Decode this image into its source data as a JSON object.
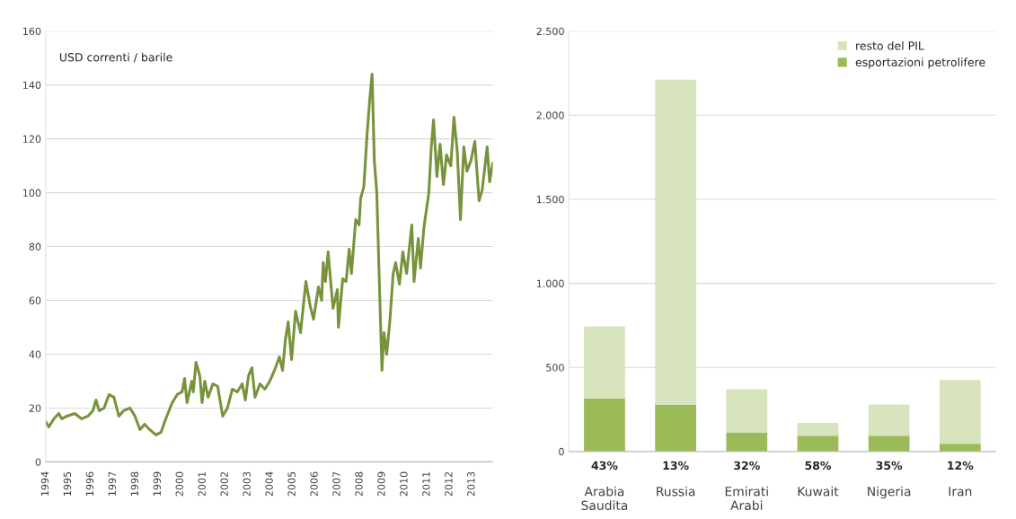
{
  "chart_data": [
    {
      "type": "line",
      "ylabel": "USD correnti / barile",
      "series": [
        {
          "color": "#77933c",
          "x": [
            1994.0,
            1994.14,
            1994.36,
            1994.58,
            1994.72,
            1994.94,
            1995.3,
            1995.6,
            1995.88,
            1996.1,
            1996.24,
            1996.39,
            1996.6,
            1996.82,
            1997.04,
            1997.26,
            1997.47,
            1997.76,
            1997.98,
            1998.2,
            1998.41,
            1998.63,
            1998.92,
            1999.14,
            1999.35,
            1999.64,
            1999.86,
            2000.08,
            2000.19,
            2000.3,
            2000.51,
            2000.58,
            2000.7,
            2000.87,
            2000.97,
            2001.09,
            2001.24,
            2001.45,
            2001.67,
            2001.89,
            2002.1,
            2002.32,
            2002.54,
            2002.76,
            2002.9,
            2003.04,
            2003.19,
            2003.33,
            2003.55,
            2003.77,
            2003.99,
            2004.2,
            2004.42,
            2004.56,
            2004.68,
            2004.81,
            2004.96,
            2005.14,
            2005.36,
            2005.6,
            2005.79,
            2005.94,
            2006.16,
            2006.3,
            2006.37,
            2006.47,
            2006.59,
            2006.81,
            2007.0,
            2007.05,
            2007.24,
            2007.39,
            2007.53,
            2007.63,
            2007.82,
            2007.97,
            2008.04,
            2008.18,
            2008.33,
            2008.45,
            2008.55,
            2008.65,
            2008.76,
            2008.88,
            2008.99,
            2009.08,
            2009.2,
            2009.34,
            2009.49,
            2009.6,
            2009.77,
            2009.92,
            2010.09,
            2010.32,
            2010.42,
            2010.61,
            2010.71,
            2010.86,
            2011.08,
            2011.19,
            2011.29,
            2011.44,
            2011.58,
            2011.73,
            2011.87,
            2012.06,
            2012.2,
            2012.35,
            2012.49,
            2012.64,
            2012.78,
            2012.96,
            2013.13,
            2013.32,
            2013.46,
            2013.68,
            2013.79,
            2013.93
          ],
          "values": [
            15,
            13,
            16,
            18,
            16,
            17,
            18,
            16,
            17,
            19,
            23,
            19,
            20,
            25,
            24,
            17,
            19,
            20,
            17,
            12,
            14,
            12,
            10,
            11,
            16,
            22,
            25,
            26,
            31,
            22,
            30,
            26,
            37,
            32,
            22,
            30,
            24,
            29,
            28,
            17,
            20,
            27,
            26,
            29,
            23,
            32,
            35,
            24,
            29,
            27,
            30,
            34,
            39,
            34,
            45,
            52,
            38,
            56,
            48,
            67,
            58,
            53,
            65,
            60,
            74,
            67,
            78,
            57,
            64,
            50,
            68,
            67,
            79,
            70,
            90,
            88,
            98,
            102,
            122,
            135,
            144,
            112,
            100,
            65,
            34,
            48,
            40,
            52,
            70,
            74,
            66,
            78,
            70,
            88,
            67,
            83,
            72,
            87,
            100,
            117,
            127,
            106,
            118,
            103,
            114,
            110,
            128,
            115,
            90,
            117,
            108,
            112,
            119,
            97,
            101,
            117,
            104,
            111
          ]
        }
      ],
      "xlim": [
        1994,
        2013.93
      ],
      "xticks": [
        1994,
        1995,
        1996,
        1997,
        1998,
        1999,
        2000,
        2001,
        2002,
        2003,
        2004,
        2005,
        2006,
        2007,
        2008,
        2009,
        2010,
        2011,
        2012,
        2013
      ],
      "ylim": [
        0,
        160
      ],
      "yticks": [
        0,
        20,
        40,
        60,
        80,
        100,
        120,
        140,
        160
      ],
      "grid": "y",
      "legend": false,
      "line_style": "solid",
      "marker": "none"
    },
    {
      "type": "bar",
      "stacked": true,
      "categories": [
        "Arabia\nSaudita",
        "Russia",
        "Emirati\nArabi",
        "Kuwait",
        "Nigeria",
        "Iran"
      ],
      "series": [
        {
          "name": "esportazioni petrolifere",
          "color": "#9bbb59",
          "values": [
            318,
            280,
            115,
            96,
            96,
            48
          ]
        },
        {
          "name": "resto del PIL",
          "color": "#d7e4bd",
          "values": [
            423,
            1928,
            251,
            70,
            180,
            373
          ]
        }
      ],
      "ylim": [
        0,
        2500
      ],
      "yticks": [
        0,
        {
          "value": 500,
          "label": "500"
        },
        {
          "value": 1000,
          "label": "1.000"
        },
        {
          "value": 1500,
          "label": "1.500"
        },
        {
          "value": 2000,
          "label": "2.000"
        },
        {
          "value": 2500,
          "label": "2.500"
        }
      ],
      "grid": "y",
      "legend": "top right",
      "annotations": [
        "43%",
        "13%",
        "32%",
        "58%",
        "35%",
        "12%"
      ]
    }
  ]
}
